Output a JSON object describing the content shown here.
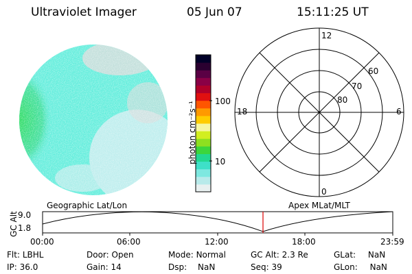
{
  "header": {
    "title": "Ultraviolet Imager",
    "date": "05 Jun 07",
    "time": "15:11:25 UT"
  },
  "colorbar": {
    "label": "photon cm⁻²s⁻¹",
    "ticks": [
      "100",
      "10"
    ],
    "colors": [
      "#e8f0f0",
      "#b8eaea",
      "#7ee8e0",
      "#3ee0c8",
      "#22d890",
      "#3cd63c",
      "#8ee020",
      "#d2ee20",
      "#f6f6a0",
      "#ffcc00",
      "#ff9900",
      "#ff5500",
      "#e01010",
      "#b0002a",
      "#8a0046",
      "#5a0044",
      "#2a0030",
      "#000028"
    ]
  },
  "polar": {
    "mlt_labels": {
      "top": "12",
      "bottom": "0",
      "left": "18",
      "right": "6"
    },
    "lat_labels": [
      "60",
      "70",
      "80"
    ]
  },
  "timeline": {
    "ylabel": "GC Alt",
    "yticks": [
      "9.0",
      "1.8"
    ],
    "left_caption": "Geographic Lat/Lon",
    "right_caption": "Apex  MLat/MLT",
    "xticks": [
      "00:00",
      "06:00",
      "12:00",
      "18:00",
      "23:59"
    ],
    "marker_color": "#dd0000",
    "curve_color": "#000000"
  },
  "status": {
    "flt": {
      "label": "Flt:",
      "value": "LBHL"
    },
    "ip": {
      "label": "IP:",
      "value": "36.0"
    },
    "door": {
      "label": "Door:",
      "value": "Open"
    },
    "gain": {
      "label": "Gain:",
      "value": "14"
    },
    "mode": {
      "label": "Mode:",
      "value": "Normal"
    },
    "dsp": {
      "label": "Dsp:",
      "value": "NaN"
    },
    "gcalt": {
      "label": "GC Alt:",
      "value": "2.3 Re"
    },
    "seq": {
      "label": "Seq:",
      "value": "39"
    },
    "glat": {
      "label": "GLat:",
      "value": "NaN"
    },
    "glon": {
      "label": "GLon:",
      "value": "NaN"
    }
  },
  "image_colors": {
    "green": "#33dd66",
    "cyan": "#66eedd",
    "pale": "#bfeeee",
    "grey": "#dcdcdc"
  }
}
